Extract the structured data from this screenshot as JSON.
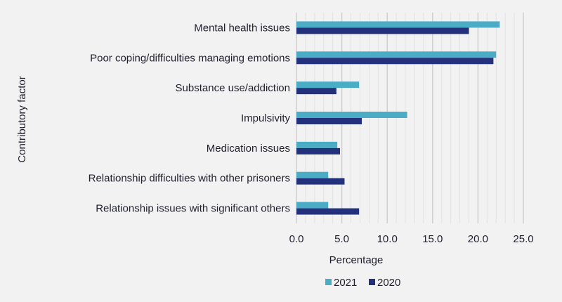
{
  "chart_data": {
    "type": "bar",
    "orientation": "horizontal",
    "categories": [
      "Mental health issues",
      "Poor coping/difficulties managing emotions",
      "Substance use/addiction",
      "Impulsivity",
      "Medication issues",
      "Relationship difficulties with other prisoners",
      "Relationship issues with significant others"
    ],
    "series": [
      {
        "name": "2021",
        "color": "#4bacc6",
        "values": [
          22.4,
          22.0,
          6.9,
          12.2,
          4.5,
          3.5,
          3.5
        ]
      },
      {
        "name": "2020",
        "color": "#23317d",
        "values": [
          19.0,
          21.7,
          4.4,
          7.2,
          4.8,
          5.3,
          6.9
        ]
      }
    ],
    "xlabel": "Percentage",
    "ylabel": "Contributory factor",
    "xlim": [
      0,
      25
    ],
    "xticks": [
      "0.0",
      "5.0",
      "10.0",
      "15.0",
      "20.0",
      "25.0"
    ],
    "grid": true,
    "legend_position": "bottom"
  }
}
